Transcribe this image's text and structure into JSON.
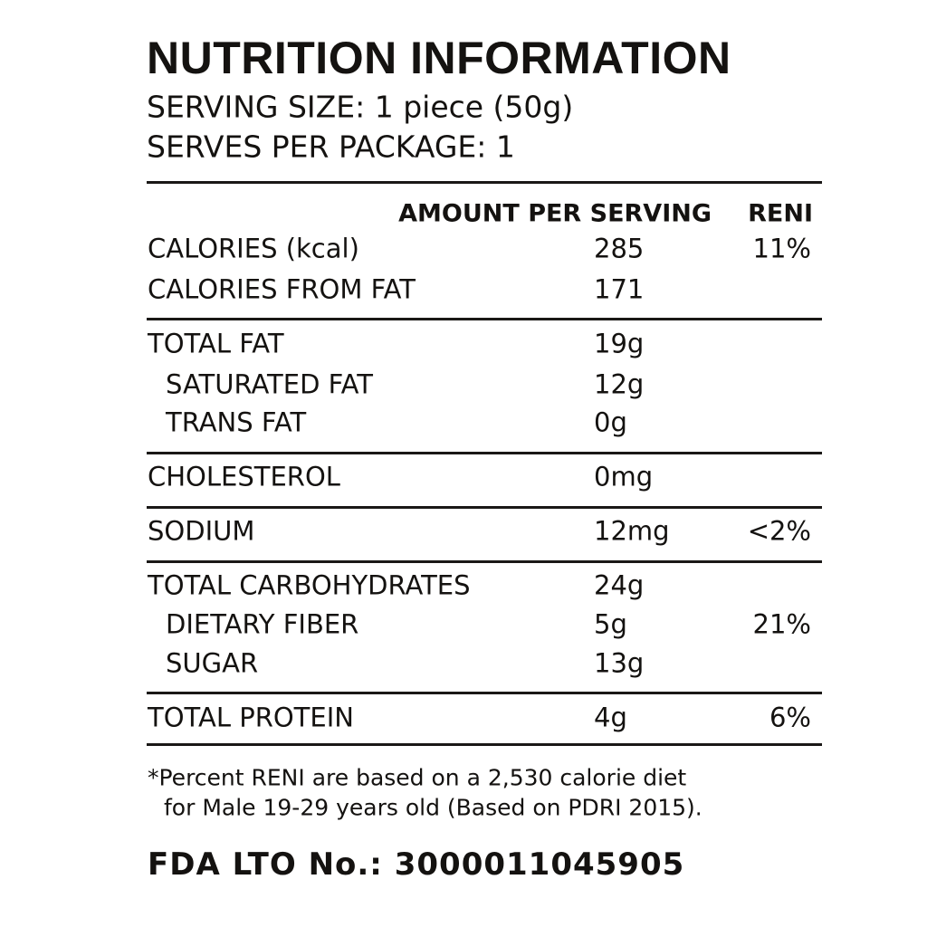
{
  "header": {
    "title": "NUTRITION INFORMATION",
    "serving_size": "SERVING SIZE: 1 piece (50g)",
    "serves_per_package": "SERVES PER PACKAGE: 1"
  },
  "table": {
    "columns": [
      "AMOUNT PER SERVING",
      "RENI"
    ],
    "groups": [
      {
        "rows": [
          {
            "label": "CALORIES (kcal)",
            "amount": "285",
            "reni": "11%"
          },
          {
            "label": "CALORIES FROM FAT",
            "amount": "171"
          }
        ]
      },
      {
        "rows": [
          {
            "label": "TOTAL FAT",
            "amount": "19g",
            "subrows": [
              {
                "label": "SATURATED FAT",
                "amount": "12g"
              },
              {
                "label": "TRANS FAT",
                "amount": "0g"
              }
            ]
          }
        ]
      },
      {
        "rows": [
          {
            "label": "CHOLESTEROL",
            "amount": "0mg"
          }
        ]
      },
      {
        "rows": [
          {
            "label": "SODIUM",
            "amount": "12mg",
            "reni": "<2%"
          }
        ]
      },
      {
        "rows": [
          {
            "label": "TOTAL CARBOHYDRATES",
            "amount": "24g",
            "subrows": [
              {
                "label": "DIETARY FIBER",
                "amount": "5g",
                "reni": "21%"
              },
              {
                "label": "SUGAR",
                "amount": "13g"
              }
            ]
          }
        ]
      },
      {
        "rows": [
          {
            "label": "TOTAL PROTEIN",
            "amount": "4g",
            "reni": "6%"
          }
        ]
      }
    ]
  },
  "footnote": [
    "*Percent RENI are based on a 2,530 calorie diet",
    "for Male 19-29 years old (Based on PDRI 2015)."
  ],
  "fda": "FDA LTO No.: 3000011045905"
}
